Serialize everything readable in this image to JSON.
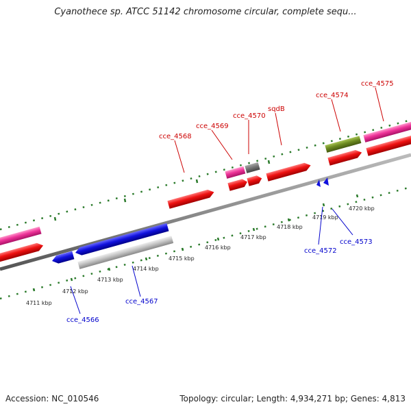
{
  "title": "Cyanothece sp. ATCC 51142 chromosome circular, complete sequ...",
  "footer": {
    "accession": "Accession: NC_010546",
    "summary": "Topology: circular; Length: 4,934,271 bp; Genes: 4,813"
  },
  "colors": {
    "backbone": "#8c8c8c",
    "dot_track": "#2a7a2a",
    "label_top": "#cc0000",
    "label_bottom": "#0000cc",
    "gene_red": "#ee1111",
    "gene_pink": "#ee3399",
    "gene_blue": "#1111dd",
    "gene_grey": "#c4c4c4",
    "gene_darkgrey": "#777777",
    "gene_olive": "#6e8c22"
  },
  "ticks": [
    "4711 kbp",
    "4712 kbp",
    "4713 kbp",
    "4714 kbp",
    "4715 kbp",
    "4716 kbp",
    "4717 kbp",
    "4718 kbp",
    "4719 kbp",
    "4720 kbp"
  ],
  "labels_top": [
    "cce_4568",
    "cce_4569",
    "cce_4570",
    "sqdB",
    "cce_4574",
    "cce_4575"
  ],
  "labels_bottom": [
    "cce_4566",
    "cce_4567",
    "cce_4572",
    "cce_4573"
  ]
}
